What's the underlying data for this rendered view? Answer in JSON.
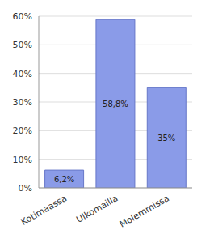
{
  "chart_data": {
    "type": "bar",
    "categories": [
      "Kotimaassa",
      "Ulkomailla",
      "Molemmissa"
    ],
    "values": [
      6.2,
      58.8,
      35
    ],
    "value_labels": [
      "6,2%",
      "58,8%",
      "35%"
    ],
    "data_labels": true,
    "color": "#8a9be8",
    "ylim": [
      0,
      60
    ],
    "yticks": [
      {
        "value": 0,
        "label": "0%"
      },
      {
        "value": 10,
        "label": "10%"
      },
      {
        "value": 20,
        "label": "20%"
      },
      {
        "value": 30,
        "label": "30%"
      },
      {
        "value": 40,
        "label": "40%"
      },
      {
        "value": 50,
        "label": "50%"
      },
      {
        "value": 60,
        "label": "60%"
      }
    ],
    "grid": true
  }
}
